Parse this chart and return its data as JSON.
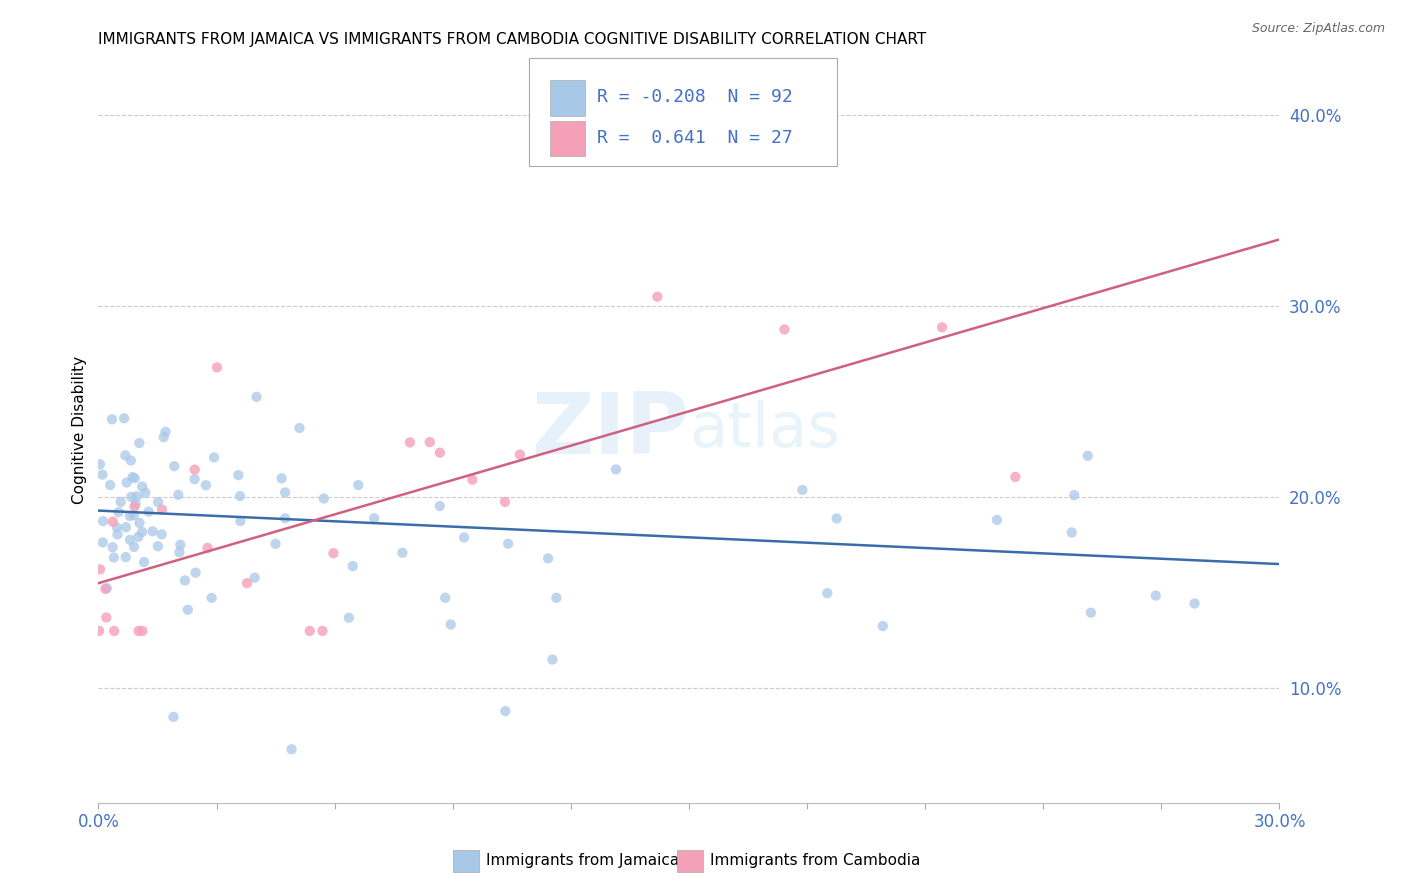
{
  "title": "IMMIGRANTS FROM JAMAICA VS IMMIGRANTS FROM CAMBODIA COGNITIVE DISABILITY CORRELATION CHART",
  "source": "Source: ZipAtlas.com",
  "ylabel": "Cognitive Disability",
  "watermark": "ZIPatlas",
  "legend_jamaica": {
    "R": -0.208,
    "N": 92,
    "label": "Immigrants from Jamaica"
  },
  "legend_cambodia": {
    "R": 0.641,
    "N": 27,
    "label": "Immigrants from Cambodia"
  },
  "color_jamaica": "#a8c8e8",
  "color_cambodia": "#f4a0b8",
  "line_color_jamaica": "#3a6caa",
  "line_color_cambodia": "#d06080",
  "xlim": [
    0.0,
    0.3
  ],
  "ylim": [
    0.04,
    0.43
  ],
  "yticks": [
    0.1,
    0.2,
    0.3,
    0.4
  ],
  "ytick_labels": [
    "10.0%",
    "20.0%",
    "30.0%",
    "40.0%"
  ],
  "background_color": "#ffffff",
  "jamaica_line_x": [
    0.0,
    0.3
  ],
  "jamaica_line_y": [
    0.193,
    0.165
  ],
  "cambodia_line_x": [
    0.0,
    0.3
  ],
  "cambodia_line_y": [
    0.155,
    0.335
  ]
}
